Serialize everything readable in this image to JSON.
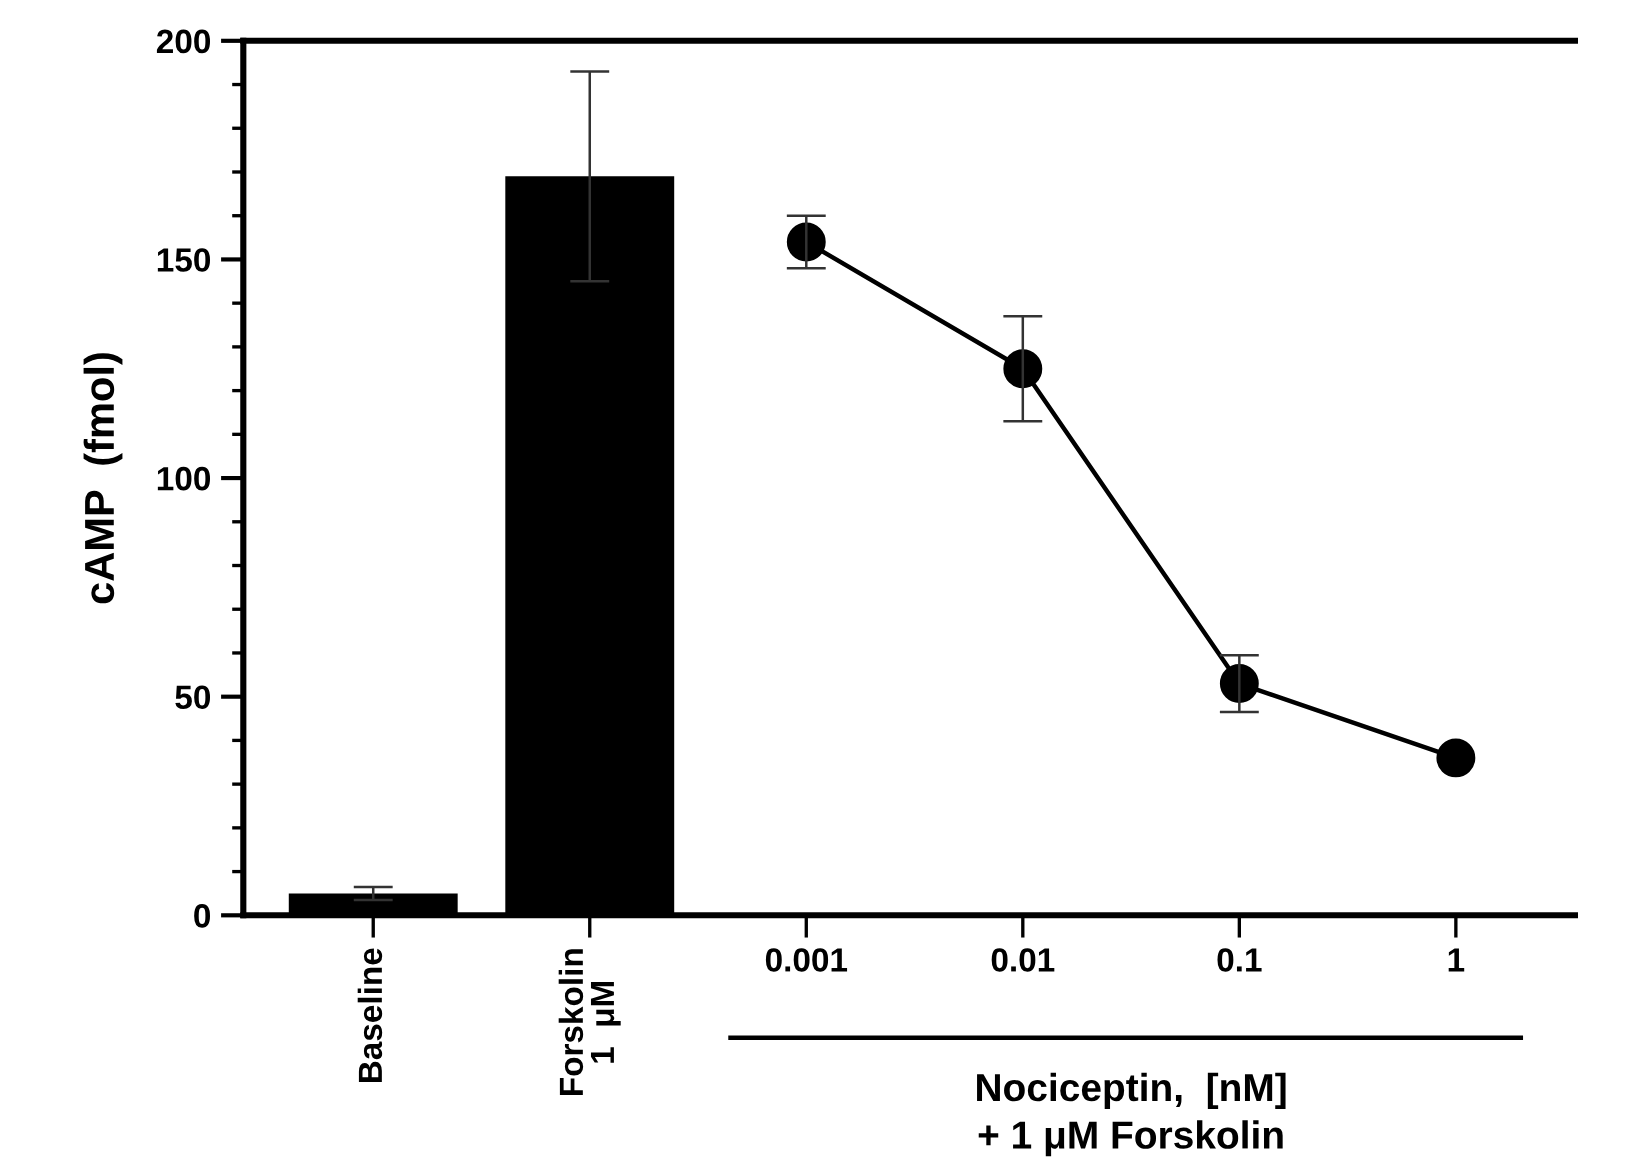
{
  "chart_data": {
    "type": "bar",
    "ylabel": "cAMP  (fmol)",
    "xlabel": "Nociceptin,  [nM]\n+ 1 μM Forskolin",
    "categories": [
      "Baseline",
      "Forskolin\n1  μM",
      "0.001",
      "0.01",
      "0.1",
      "1"
    ],
    "series": [
      {
        "color": "#000000",
        "values": [
          5,
          169,
          null,
          null,
          null,
          null
        ],
        "errors": [
          1.5,
          24,
          null,
          null,
          null,
          null
        ]
      },
      {
        "type": "line",
        "color": "#000000",
        "values": [
          null,
          null,
          154,
          125,
          53,
          36
        ],
        "errors": [
          null,
          null,
          6,
          12,
          6.5,
          null
        ]
      }
    ],
    "marker": "circle",
    "line_style": "solid",
    "ylim": [
      0,
      200
    ],
    "yticks": [
      0,
      50,
      100,
      150,
      200
    ],
    "grid": false,
    "legend": false
  }
}
